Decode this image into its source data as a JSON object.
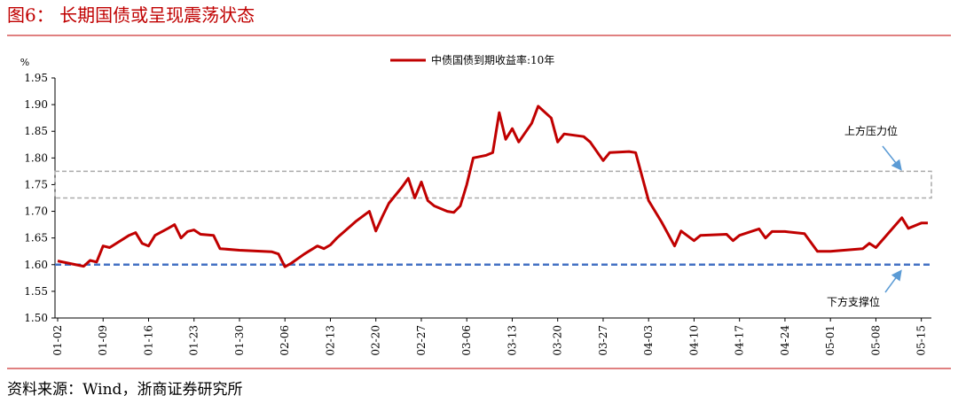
{
  "header": {
    "title": "图6： 长期国债或呈现震荡状态"
  },
  "chart_data": {
    "type": "line",
    "y_unit": "%",
    "x": [
      "01-02",
      "01-04",
      "01-06",
      "01-07",
      "01-08",
      "01-09",
      "01-10",
      "01-13",
      "01-14",
      "01-15",
      "01-16",
      "01-17",
      "01-19",
      "01-20",
      "01-21",
      "01-22",
      "01-23",
      "01-24",
      "01-26",
      "01-27",
      "01-30",
      "02-04",
      "02-05",
      "02-06",
      "02-07",
      "02-09",
      "02-11",
      "02-12",
      "02-13",
      "02-14",
      "02-17",
      "02-19",
      "02-20",
      "02-21",
      "02-22",
      "02-24",
      "02-25",
      "02-26",
      "02-27",
      "02-28",
      "03-01",
      "03-03",
      "03-04",
      "03-05",
      "03-06",
      "03-07",
      "03-09",
      "03-10",
      "03-11",
      "03-12",
      "03-13",
      "03-14",
      "03-16",
      "03-17",
      "03-19",
      "03-20",
      "03-21",
      "03-24",
      "03-25",
      "03-27",
      "03-28",
      "03-31",
      "04-01",
      "04-03",
      "04-05",
      "04-07",
      "04-08",
      "04-10",
      "04-11",
      "04-15",
      "04-16",
      "04-17",
      "04-20",
      "04-21",
      "04-22",
      "04-24",
      "04-27",
      "04-29",
      "05-01",
      "05-06",
      "05-07",
      "05-08",
      "05-12",
      "05-13",
      "05-15",
      "05-16"
    ],
    "series": [
      {
        "name": "中债国债到期收益率:10年",
        "color": "#c00000",
        "values": [
          1.607,
          1.602,
          1.597,
          1.608,
          1.605,
          1.635,
          1.632,
          1.655,
          1.66,
          1.64,
          1.635,
          1.655,
          1.668,
          1.675,
          1.65,
          1.662,
          1.665,
          1.657,
          1.655,
          1.63,
          1.627,
          1.624,
          1.62,
          1.596,
          1.603,
          1.62,
          1.635,
          1.63,
          1.637,
          1.65,
          1.682,
          1.7,
          1.663,
          1.69,
          1.715,
          1.745,
          1.762,
          1.725,
          1.755,
          1.72,
          1.71,
          1.7,
          1.698,
          1.71,
          1.75,
          1.8,
          1.805,
          1.81,
          1.885,
          1.835,
          1.855,
          1.83,
          1.865,
          1.897,
          1.875,
          1.83,
          1.845,
          1.84,
          1.83,
          1.795,
          1.81,
          1.812,
          1.81,
          1.72,
          1.68,
          1.635,
          1.663,
          1.645,
          1.655,
          1.657,
          1.645,
          1.655,
          1.667,
          1.65,
          1.662,
          1.662,
          1.658,
          1.625,
          1.625,
          1.63,
          1.64,
          1.632,
          1.688,
          1.668,
          1.678,
          1.678
        ]
      }
    ],
    "xlim": [
      "01-02",
      "05-16"
    ],
    "xticks": [
      "01-02",
      "01-09",
      "01-16",
      "01-23",
      "01-30",
      "02-06",
      "02-13",
      "02-20",
      "02-27",
      "03-06",
      "03-13",
      "03-20",
      "03-27",
      "04-03",
      "04-10",
      "04-17",
      "04-24",
      "05-01",
      "05-08",
      "05-15"
    ],
    "ylim": [
      1.5,
      1.95
    ],
    "yticks": [
      {
        "value": 1.5,
        "label": "1.50"
      },
      1.55,
      {
        "value": 1.6,
        "label": "1.60"
      },
      1.65,
      {
        "value": 1.7,
        "label": "1.70"
      },
      1.75,
      {
        "value": 1.8,
        "label": "1.80"
      },
      1.85,
      {
        "value": 1.9,
        "label": "1.90"
      },
      1.95
    ],
    "support_line": {
      "value": 1.6,
      "color": "#4472c4",
      "label": "下方支撑位"
    },
    "resistance_band": {
      "range": [
        1.725,
        1.775
      ],
      "color": "#aaaaaa",
      "label": "上方压力位"
    }
  },
  "footer": {
    "source": "资料来源：Wind，浙商证券研究所"
  }
}
